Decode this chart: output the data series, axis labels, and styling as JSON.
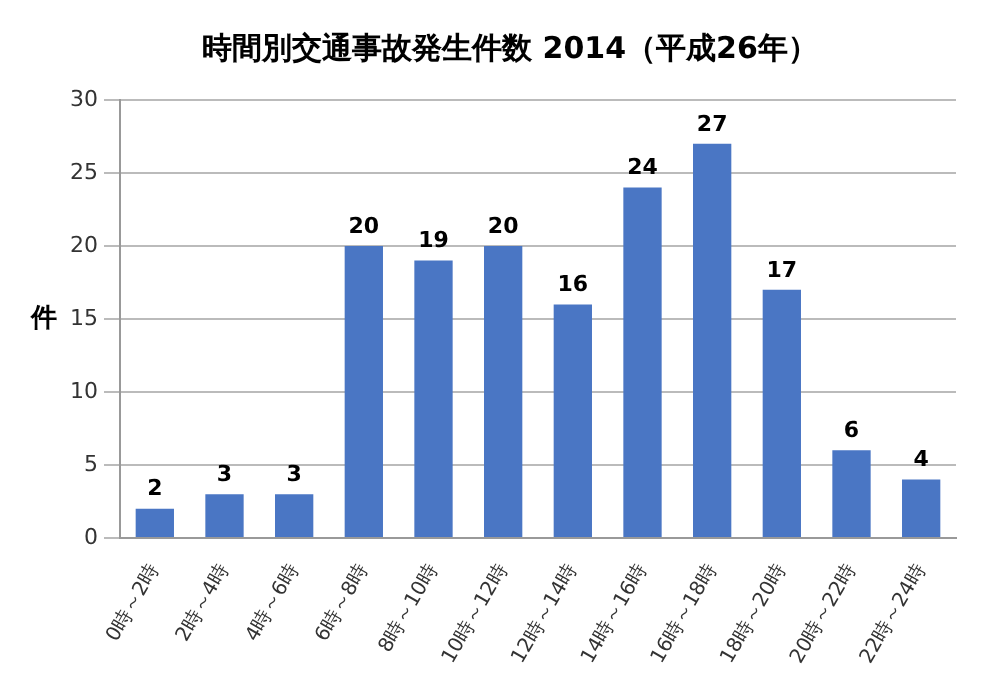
{
  "chart_data": {
    "type": "bar",
    "title": "時間別交通事故発生件数 2014（平成26年）",
    "ylabel": "件",
    "categories": [
      "0時～2時",
      "2時～4時",
      "4時～6時",
      "6時～8時",
      "8時～10時",
      "10時～12時",
      "12時～14時",
      "14時～16時",
      "16時～18時",
      "18時～20時",
      "20時～22時",
      "22時～24時"
    ],
    "values": [
      2,
      3,
      3,
      20,
      19,
      20,
      16,
      24,
      27,
      17,
      6,
      4
    ],
    "color": "#4a76c4",
    "ylim": [
      0,
      30
    ],
    "yticks": [
      0,
      5,
      10,
      15,
      20,
      25,
      30
    ],
    "grid": "y",
    "data_labels": true,
    "legend": false
  }
}
